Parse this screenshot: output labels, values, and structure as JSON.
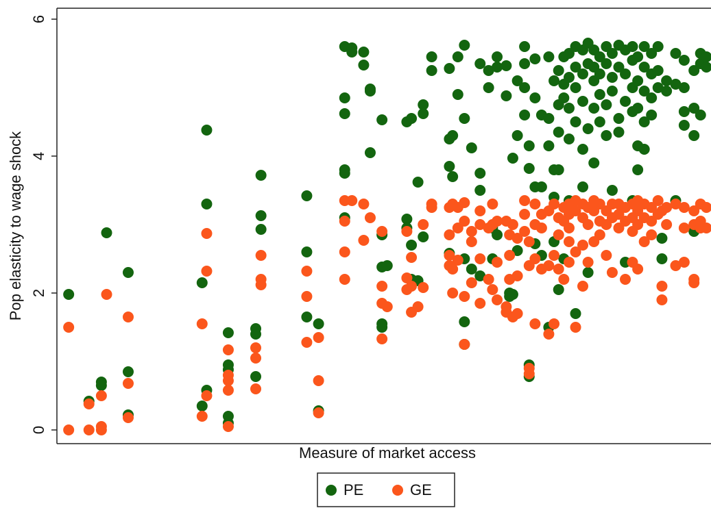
{
  "chart_data": {
    "type": "scatter",
    "xlabel": "Measure of market access",
    "ylabel": "Pop elasticity to wage shock",
    "xlim": [
      0,
      100
    ],
    "ylim": [
      -0.2,
      6.16
    ],
    "yticks": [
      0,
      2,
      4,
      6
    ],
    "grid": false,
    "legend": "bottom",
    "series": [
      {
        "name": "PE",
        "color": "#13650f",
        "x": [
          1.8,
          4.9,
          6.8,
          6.8,
          7.6,
          10.9,
          10.9,
          10.9,
          22.2,
          22.2,
          22.9,
          22.9,
          22.9,
          26.2,
          26.2,
          26.2,
          26.2,
          26.2,
          30.4,
          30.4,
          30.4,
          31.2,
          31.2,
          31.2,
          38.2,
          38.2,
          38.2,
          40,
          40,
          44,
          44,
          44,
          44,
          44,
          44,
          45.1,
          45.1,
          46.9,
          46.9,
          47.9,
          47.9,
          47.9,
          49.7,
          49.7,
          49.7,
          49.7,
          49.7,
          50.5,
          53.5,
          53.5,
          53.5,
          54.2,
          54.2,
          54.2,
          55.2,
          55.2,
          56,
          56,
          56,
          57.3,
          57.3,
          60,
          60,
          60,
          60,
          60.5,
          60.5,
          61.3,
          61.3,
          62.3,
          62.3,
          62.3,
          62.3,
          62.3,
          63.4,
          63.4,
          64.7,
          64.7,
          64.7,
          64.7,
          66,
          66,
          66.6,
          66.6,
          67.3,
          67.3,
          67.3,
          68.7,
          68.7,
          69.2,
          69.2,
          69.7,
          69.7,
          70.4,
          70.4,
          70.4,
          71.5,
          71.5,
          71.5,
          71.5,
          72.2,
          72.2,
          72.2,
          72.2,
          73.1,
          73.1,
          73.1,
          73.1,
          74.1,
          74.1,
          74.1,
          75.2,
          75.2,
          75.2,
          75.2,
          76,
          76,
          76,
          76,
          76.7,
          76.7,
          76.7,
          76.7,
          76.7,
          77.5,
          77.5,
          77.5,
          77.5,
          78.3,
          78.3,
          78.3,
          78.3,
          78.3,
          79.3,
          79.3,
          79.3,
          79.3,
          79.3,
          80.4,
          80.4,
          80.4,
          80.4,
          80.4,
          81.2,
          81.2,
          81.2,
          81.2,
          82.1,
          82.1,
          82.1,
          82.1,
          82.1,
          83,
          83,
          83,
          83,
          84,
          84,
          84,
          84,
          84.9,
          84.9,
          84.9,
          84.9,
          85.9,
          85.9,
          85.9,
          85.9,
          86.9,
          86.9,
          86.9,
          86.9,
          88,
          88,
          88,
          88,
          88,
          88.8,
          88.8,
          88.8,
          88.8,
          88.8,
          89.8,
          89.8,
          89.8,
          89.8,
          89.8,
          90.9,
          90.9,
          90.9,
          90.9,
          91.9,
          91.9,
          91.9,
          92.5,
          92.5,
          93.2,
          93.2,
          94.6,
          94.6,
          94.6,
          95.9,
          95.9,
          95.9,
          95.9,
          97.4,
          97.4,
          97.4,
          97.4,
          98.4,
          98.4,
          98.4,
          99.3,
          99.3
        ],
        "values": [
          1.98,
          0.42,
          0.7,
          0.65,
          2.88,
          2.3,
          0.85,
          0.22,
          2.15,
          0.35,
          4.38,
          3.3,
          0.58,
          1.42,
          0.95,
          0.88,
          0.2,
          0.1,
          1.48,
          1.4,
          0.78,
          3.72,
          3.13,
          2.93,
          3.42,
          2.6,
          1.65,
          1.55,
          0.28,
          5.6,
          4.85,
          4.62,
          3.8,
          3.75,
          3.1,
          5.58,
          5.52,
          5.52,
          5.33,
          4.98,
          4.95,
          4.05,
          4.53,
          2.85,
          2.38,
          1.55,
          1.5,
          2.4,
          4.5,
          3.08,
          2.95,
          4.55,
          2.7,
          2.2,
          3.62,
          2.18,
          4.75,
          4.62,
          2.82,
          5.45,
          5.25,
          5.28,
          4.25,
          3.85,
          2.58,
          4.3,
          3.7,
          5.45,
          4.9,
          5.62,
          4.55,
          2.5,
          1.58,
          1.25,
          4.12,
          2.35,
          5.35,
          3.75,
          3.5,
          2.25,
          5.25,
          5.0,
          2.95,
          2.5,
          5.45,
          5.3,
          2.85,
          5.32,
          4.88,
          2.0,
          1.95,
          3.97,
          1.98,
          5.1,
          4.3,
          2.62,
          5.6,
          5.35,
          5.0,
          4.6,
          4.15,
          3.82,
          0.95,
          0.78,
          5.42,
          4.85,
          3.55,
          2.72,
          4.6,
          3.55,
          2.55,
          5.45,
          4.55,
          4.15,
          1.5,
          5.1,
          3.8,
          3.4,
          2.75,
          5.25,
          4.75,
          4.35,
          3.8,
          2.05,
          5.45,
          5.05,
          4.85,
          2.5,
          5.5,
          5.15,
          4.7,
          4.25,
          3.35,
          5.6,
          5.3,
          5.0,
          4.5,
          1.7,
          5.55,
          5.2,
          4.8,
          4.1,
          3.55,
          5.65,
          5.35,
          4.4,
          2.3,
          5.55,
          5.3,
          5.1,
          4.7,
          3.9,
          5.45,
          5.2,
          4.9,
          4.5,
          5.6,
          5.35,
          4.75,
          4.3,
          5.5,
          5.15,
          4.95,
          3.5,
          5.62,
          5.3,
          4.55,
          4.35,
          5.55,
          5.2,
          4.8,
          2.45,
          5.6,
          5.4,
          5.0,
          4.65,
          3.35,
          5.45,
          5.1,
          4.7,
          4.15,
          3.8,
          5.6,
          5.3,
          4.95,
          4.5,
          4.1,
          5.5,
          5.2,
          4.85,
          4.6,
          5.6,
          5.25,
          5.0,
          2.8,
          2.5,
          5.1,
          4.95,
          5.5,
          5.05,
          3.35,
          5.4,
          5.0,
          4.65,
          4.45,
          5.25,
          4.7,
          4.3,
          2.9,
          5.5,
          5.35,
          4.6,
          5.45,
          5.3
        ]
      },
      {
        "name": "GE",
        "color": "#fb561c",
        "x": [
          1.8,
          1.8,
          4.9,
          4.9,
          6.8,
          6.8,
          6.8,
          7.6,
          10.9,
          10.9,
          10.9,
          22.2,
          22.2,
          22.9,
          22.9,
          22.9,
          26.2,
          26.2,
          26.2,
          26.2,
          26.2,
          30.4,
          30.4,
          30.4,
          31.2,
          31.2,
          31.2,
          38.2,
          38.2,
          38.2,
          40,
          40,
          40,
          44,
          44,
          44,
          44,
          45.1,
          46.9,
          46.9,
          47.9,
          49.7,
          49.7,
          49.7,
          49.7,
          50.5,
          53.5,
          53.5,
          53.5,
          54.2,
          54.2,
          54.2,
          55.2,
          56,
          56,
          57.3,
          57.3,
          60,
          60,
          60,
          60,
          60.5,
          60.5,
          60.5,
          61.3,
          61.3,
          61.3,
          62.3,
          62.3,
          62.3,
          62.3,
          63.4,
          63.4,
          63.4,
          64.7,
          64.7,
          64.7,
          64.7,
          66,
          66,
          66.6,
          66.6,
          66.6,
          67.3,
          67.3,
          67.3,
          68.7,
          68.7,
          68.7,
          69.2,
          69.2,
          69.2,
          69.7,
          69.7,
          70.4,
          70.4,
          70.4,
          71.5,
          71.5,
          71.5,
          72.2,
          72.2,
          72.2,
          72.2,
          73.1,
          73.1,
          73.1,
          73.1,
          74.1,
          74.1,
          74.1,
          75.2,
          75.2,
          75.2,
          76,
          76,
          76,
          76.7,
          76.7,
          76.7,
          77.5,
          77.5,
          77.5,
          78.3,
          78.3,
          78.3,
          78.3,
          78.3,
          79.3,
          79.3,
          79.3,
          79.3,
          80.4,
          80.4,
          80.4,
          80.4,
          81.2,
          81.2,
          81.2,
          82.1,
          82.1,
          82.1,
          83,
          83,
          83,
          84,
          84,
          84,
          84.9,
          84.9,
          84.9,
          85.9,
          85.9,
          85.9,
          86.9,
          86.9,
          86.9,
          88,
          88,
          88,
          88,
          88.8,
          88.8,
          88.8,
          88.8,
          89.8,
          89.8,
          89.8,
          90.9,
          90.9,
          90.9,
          91.9,
          91.9,
          92.5,
          92.5,
          92.5,
          93.2,
          93.2,
          94.6,
          94.6,
          95.9,
          95.9,
          95.9,
          97.4,
          97.4,
          97.4,
          97.4,
          98.4,
          98.4,
          98.4,
          99.3,
          99.3
        ],
        "values": [
          1.5,
          0,
          0.38,
          0,
          0.5,
          0.05,
          0,
          1.98,
          1.65,
          0.68,
          0.18,
          1.55,
          0.2,
          2.87,
          2.32,
          0.5,
          1.17,
          0.8,
          0.72,
          0.58,
          0.05,
          1.2,
          1.05,
          0.6,
          2.55,
          2.2,
          2.12,
          2.32,
          1.95,
          1.28,
          1.35,
          0.72,
          0.25,
          3.35,
          3.05,
          2.6,
          2.2,
          3.35,
          3.3,
          2.77,
          3.1,
          2.9,
          2.1,
          1.85,
          1.33,
          1.8,
          2.9,
          2.22,
          2.05,
          2.52,
          2.1,
          1.72,
          1.8,
          3.0,
          2.08,
          3.3,
          3.25,
          3.25,
          2.85,
          2.55,
          2.4,
          3.3,
          2.35,
          2.0,
          3.25,
          2.95,
          2.48,
          3.32,
          3.05,
          1.95,
          1.25,
          2.9,
          2.75,
          2.15,
          3.2,
          3.0,
          2.5,
          1.85,
          2.95,
          2.2,
          3.3,
          3.0,
          2.05,
          3.05,
          2.45,
          1.9,
          3.05,
          1.8,
          1.72,
          2.85,
          2.55,
          2.2,
          3.0,
          1.65,
          2.8,
          2.25,
          1.7,
          3.35,
          3.15,
          2.9,
          2.75,
          2.4,
          0.9,
          0.82,
          3.3,
          3.0,
          2.5,
          1.55,
          3.15,
          2.95,
          2.35,
          3.2,
          2.4,
          1.4,
          3.3,
          2.55,
          1.55,
          3.1,
          2.85,
          2.35,
          3.25,
          3.05,
          2.2,
          3.3,
          3.15,
          2.95,
          2.75,
          2.45,
          3.35,
          3.2,
          2.6,
          1.5,
          3.3,
          3.1,
          2.7,
          2.1,
          3.25,
          3.0,
          2.45,
          3.35,
          3.2,
          2.75,
          3.3,
          3.05,
          2.85,
          3.2,
          3.0,
          2.55,
          3.3,
          3.1,
          2.3,
          3.3,
          3.15,
          2.95,
          3.25,
          3.05,
          2.2,
          3.3,
          3.1,
          2.9,
          2.45,
          3.35,
          3.2,
          3.0,
          2.35,
          3.3,
          3.1,
          2.75,
          3.25,
          3.05,
          2.85,
          3.35,
          3.15,
          3.2,
          2.1,
          1.9,
          3.25,
          3.0,
          3.3,
          2.4,
          3.25,
          2.95,
          2.45,
          3.2,
          3.0,
          2.2,
          2.15,
          3.3,
          3.05,
          2.95,
          3.25,
          2.95
        ]
      }
    ]
  }
}
